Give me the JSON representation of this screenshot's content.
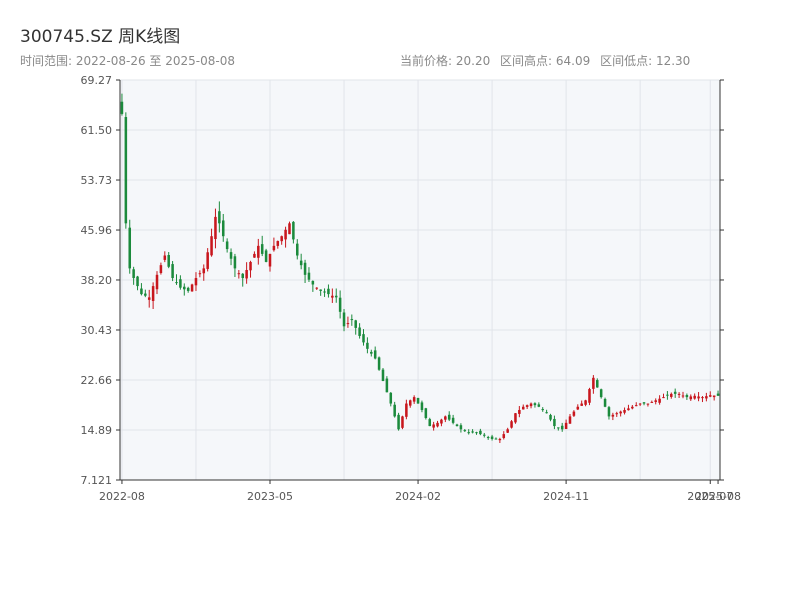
{
  "header": {
    "title": "300745.SZ 周K线图",
    "range_text": "时间范围: 2022-08-26 至 2025-08-08"
  },
  "stats": {
    "current_price": "当前价格: 20.20",
    "high": "区间高点: 64.09",
    "low": "区间低点: 12.30"
  },
  "colors": {
    "up": "#c8161d",
    "down": "#1b8a3c",
    "plot_bg": "#f5f7fa",
    "grid": "#e1e4ea",
    "axis": "#333333"
  },
  "chart_data": {
    "type": "candlestick",
    "period": "weekly",
    "ylim": [
      7.121,
      69.27
    ],
    "y_ticks": [
      7.121,
      14.89,
      22.66,
      30.43,
      38.2,
      45.96,
      53.73,
      61.5,
      69.27
    ],
    "y_tick_labels": [
      "7.121",
      "14.89",
      "22.66",
      "30.43",
      "38.20",
      "45.96",
      "53.73",
      "61.50",
      "69.27"
    ],
    "x_tick_labels": [
      "2022-08",
      "2023-05",
      "2024-02",
      "2024-11",
      "2025-07",
      "2025-08"
    ],
    "x_tick_index": [
      0,
      38,
      76,
      114,
      151,
      153
    ],
    "anchors": [
      [
        0,
        64.0
      ],
      [
        1,
        47.0
      ],
      [
        2,
        40.0
      ],
      [
        3,
        38.5
      ],
      [
        5,
        36.0
      ],
      [
        7,
        35.5
      ],
      [
        9,
        39.0
      ],
      [
        11,
        42.0
      ],
      [
        13,
        38.5
      ],
      [
        15,
        37.0
      ],
      [
        17,
        36.5
      ],
      [
        19,
        38.5
      ],
      [
        21,
        40.0
      ],
      [
        23,
        45.0
      ],
      [
        24,
        48.0
      ],
      [
        25,
        47.0
      ],
      [
        27,
        43.0
      ],
      [
        29,
        40.0
      ],
      [
        31,
        38.5
      ],
      [
        33,
        41.0
      ],
      [
        35,
        43.5
      ],
      [
        37,
        41.0
      ],
      [
        39,
        43.5
      ],
      [
        41,
        45.0
      ],
      [
        43,
        47.0
      ],
      [
        45,
        42.0
      ],
      [
        47,
        39.0
      ],
      [
        49,
        37.5
      ],
      [
        51,
        36.5
      ],
      [
        53,
        36.0
      ],
      [
        55,
        35.5
      ],
      [
        57,
        31.0
      ],
      [
        59,
        32.0
      ],
      [
        61,
        29.5
      ],
      [
        63,
        27.5
      ],
      [
        65,
        26.0
      ],
      [
        67,
        22.5
      ],
      [
        69,
        19.0
      ],
      [
        71,
        15.0
      ],
      [
        73,
        19.0
      ],
      [
        75,
        20.0
      ],
      [
        77,
        18.0
      ],
      [
        79,
        15.5
      ],
      [
        81,
        16.0
      ],
      [
        83,
        17.0
      ],
      [
        85,
        16.0
      ],
      [
        87,
        15.0
      ],
      [
        89,
        14.5
      ],
      [
        91,
        14.5
      ],
      [
        93,
        14.0
      ],
      [
        95,
        13.5
      ],
      [
        97,
        13.5
      ],
      [
        99,
        15.0
      ],
      [
        101,
        17.5
      ],
      [
        103,
        18.5
      ],
      [
        105,
        19.0
      ],
      [
        107,
        18.5
      ],
      [
        109,
        17.5
      ],
      [
        111,
        15.5
      ],
      [
        113,
        15.0
      ],
      [
        115,
        17.0
      ],
      [
        117,
        18.5
      ],
      [
        119,
        19.5
      ],
      [
        121,
        23.0
      ],
      [
        123,
        20.0
      ],
      [
        125,
        17.0
      ],
      [
        127,
        17.5
      ],
      [
        129,
        18.0
      ],
      [
        131,
        18.5
      ],
      [
        133,
        19.0
      ],
      [
        135,
        19.0
      ],
      [
        137,
        19.5
      ],
      [
        139,
        20.0
      ],
      [
        141,
        20.5
      ],
      [
        143,
        20.5
      ],
      [
        145,
        20.0
      ],
      [
        147,
        20.2
      ],
      [
        149,
        20.0
      ],
      [
        151,
        20.3
      ],
      [
        153,
        20.2
      ]
    ]
  }
}
